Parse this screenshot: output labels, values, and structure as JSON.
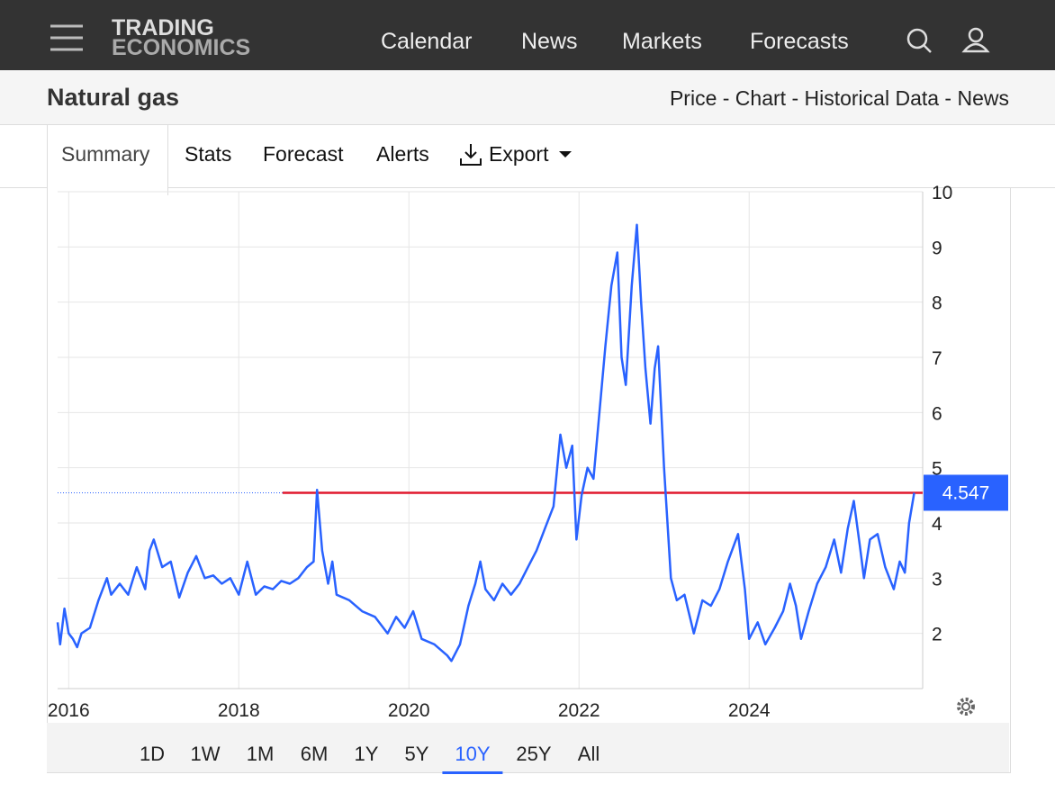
{
  "header": {
    "logo": [
      "TRADING",
      "ECONOMICS"
    ],
    "nav": [
      "Calendar",
      "News",
      "Markets",
      "Forecasts"
    ]
  },
  "title": "Natural gas",
  "breadcrumb": "Price - Chart - Historical Data - News",
  "tabs": [
    "Summary",
    "Stats",
    "Forecast",
    "Alerts",
    "Export"
  ],
  "chart_data": {
    "type": "line",
    "x": [
      2015.87,
      2015.9,
      2015.95,
      2016.0,
      2016.05,
      2016.1,
      2016.15,
      2016.25,
      2016.35,
      2016.45,
      2016.5,
      2016.6,
      2016.7,
      2016.8,
      2016.9,
      2016.95,
      2017.0,
      2017.1,
      2017.2,
      2017.3,
      2017.4,
      2017.5,
      2017.6,
      2017.7,
      2017.8,
      2017.9,
      2018.0,
      2018.1,
      2018.2,
      2018.3,
      2018.4,
      2018.5,
      2018.6,
      2018.7,
      2018.8,
      2018.88,
      2018.92,
      2018.98,
      2019.05,
      2019.1,
      2019.15,
      2019.3,
      2019.45,
      2019.6,
      2019.75,
      2019.85,
      2019.95,
      2020.05,
      2020.15,
      2020.3,
      2020.45,
      2020.5,
      2020.6,
      2020.7,
      2020.78,
      2020.84,
      2020.9,
      2021.0,
      2021.1,
      2021.2,
      2021.3,
      2021.4,
      2021.5,
      2021.6,
      2021.7,
      2021.78,
      2021.85,
      2021.92,
      2021.97,
      2022.03,
      2022.1,
      2022.17,
      2022.24,
      2022.31,
      2022.38,
      2022.45,
      2022.5,
      2022.55,
      2022.62,
      2022.68,
      2022.73,
      2022.78,
      2022.84,
      2022.89,
      2022.93,
      2023.0,
      2023.04,
      2023.08,
      2023.15,
      2023.24,
      2023.35,
      2023.45,
      2023.55,
      2023.65,
      2023.75,
      2023.87,
      2023.95,
      2024.0,
      2024.1,
      2024.19,
      2024.3,
      2024.4,
      2024.48,
      2024.55,
      2024.61,
      2024.7,
      2024.8,
      2024.9,
      2025.0,
      2025.08,
      2025.16,
      2025.23,
      2025.3,
      2025.35,
      2025.42,
      2025.51,
      2025.6,
      2025.7,
      2025.77,
      2025.83,
      2025.88,
      2025.94
    ],
    "series": [
      {
        "color": "#2962ff",
        "values": [
          2.2,
          1.8,
          2.45,
          2.0,
          1.9,
          1.75,
          2.0,
          2.1,
          2.6,
          3.0,
          2.7,
          2.9,
          2.7,
          3.2,
          2.8,
          3.5,
          3.7,
          3.2,
          3.3,
          2.65,
          3.1,
          3.4,
          3.0,
          3.05,
          2.9,
          3.0,
          2.7,
          3.3,
          2.7,
          2.85,
          2.8,
          2.95,
          2.9,
          3.0,
          3.2,
          3.3,
          4.6,
          3.5,
          2.9,
          3.3,
          2.7,
          2.6,
          2.4,
          2.3,
          2.0,
          2.3,
          2.1,
          2.4,
          1.9,
          1.8,
          1.6,
          1.5,
          1.8,
          2.5,
          2.9,
          3.3,
          2.8,
          2.6,
          2.9,
          2.7,
          2.9,
          3.2,
          3.5,
          3.9,
          4.3,
          5.6,
          5.0,
          5.4,
          3.7,
          4.5,
          5.0,
          4.8,
          6.0,
          7.2,
          8.3,
          8.9,
          7.0,
          6.5,
          8.3,
          9.4,
          8.0,
          6.8,
          5.8,
          6.8,
          7.2,
          5.0,
          4.0,
          3.0,
          2.6,
          2.7,
          2.0,
          2.6,
          2.5,
          2.8,
          3.3,
          3.8,
          2.8,
          1.9,
          2.2,
          1.8,
          2.1,
          2.4,
          2.9,
          2.5,
          1.9,
          2.4,
          2.9,
          3.2,
          3.7,
          3.1,
          3.9,
          4.4,
          3.6,
          3.0,
          3.7,
          3.8,
          3.2,
          2.8,
          3.3,
          3.1,
          4.0,
          4.547
        ]
      }
    ],
    "xlim": [
      2015.87,
      2026.04
    ],
    "xticks": [
      2016,
      2018,
      2020,
      2022,
      2024
    ],
    "ylim": [
      1,
      10
    ],
    "yticks": [
      2,
      3,
      4,
      5,
      6,
      7,
      8,
      9,
      10
    ],
    "grid": true
  },
  "ranges": [
    "1D",
    "1W",
    "1M",
    "6M",
    "1Y",
    "5Y",
    "10Y",
    "25Y",
    "All"
  ],
  "active_range": 6
}
